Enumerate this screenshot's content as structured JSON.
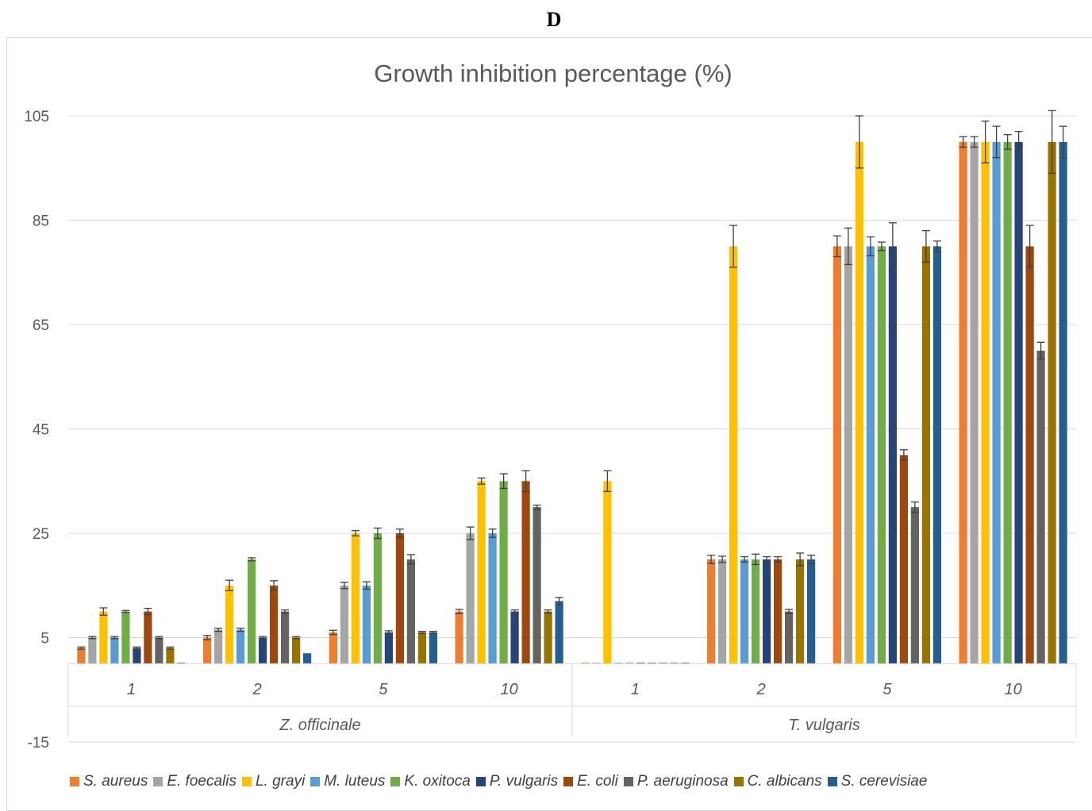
{
  "panel_label": "D",
  "chart_data": {
    "type": "bar",
    "title": "Growth inhibition percentage (%)",
    "xlabel": "",
    "ylabel": "",
    "ylim": [
      -15,
      105
    ],
    "yticks": [
      -15,
      5,
      25,
      45,
      65,
      85,
      105
    ],
    "grid": true,
    "legend_position": "bottom",
    "groups": [
      {
        "name": "Z. officinale",
        "categories": [
          "1",
          "2",
          "5",
          "10"
        ]
      },
      {
        "name": "T. vulgaris",
        "categories": [
          "1",
          "2",
          "5",
          "10"
        ]
      }
    ],
    "categories": [
      "1",
      "2",
      "5",
      "10",
      "1",
      "2",
      "5",
      "10"
    ],
    "series": [
      {
        "name": "S. aureus",
        "color": "#ed7d31",
        "values": [
          3,
          5,
          6,
          10,
          0,
          20,
          80,
          100
        ],
        "errors": [
          0.2,
          0.4,
          0.4,
          0.4,
          0,
          0.8,
          2,
          1
        ]
      },
      {
        "name": "E. foecalis",
        "color": "#a5a5a5",
        "values": [
          5,
          6.5,
          15,
          25,
          0,
          20,
          80,
          100
        ],
        "errors": [
          0.2,
          0.3,
          0.6,
          1.2,
          0,
          0.6,
          3.5,
          1
        ]
      },
      {
        "name": "L. grayi",
        "color": "#ffc000",
        "values": [
          10,
          15,
          25,
          35,
          35,
          80,
          100,
          100
        ],
        "errors": [
          0.7,
          1,
          0.5,
          0.6,
          2,
          4,
          5,
          4
        ]
      },
      {
        "name": "M. luteus",
        "color": "#5b9bd5",
        "values": [
          5,
          6.5,
          15,
          25,
          0,
          20,
          80,
          100
        ],
        "errors": [
          0.2,
          0.3,
          0.7,
          0.8,
          0,
          0.5,
          1.8,
          3
        ]
      },
      {
        "name": "K. oxitoca",
        "color": "#70ad47",
        "values": [
          10,
          20,
          25,
          35,
          0,
          20,
          80,
          100
        ],
        "errors": [
          0.2,
          0.3,
          1,
          1.4,
          0,
          1,
          0.8,
          1.4
        ]
      },
      {
        "name": "P. vulgaris",
        "color": "#264478",
        "values": [
          3,
          5,
          6,
          10,
          0,
          20,
          80,
          100
        ],
        "errors": [
          0.2,
          0.2,
          0.3,
          0.3,
          0,
          0.5,
          4.5,
          2
        ]
      },
      {
        "name": "E. coli",
        "color": "#9e480e",
        "values": [
          10,
          15,
          25,
          35,
          0,
          20,
          40,
          80
        ],
        "errors": [
          0.6,
          0.9,
          0.8,
          2,
          0,
          0.5,
          1,
          4
        ]
      },
      {
        "name": "P. aeruginosa",
        "color": "#636363",
        "values": [
          5,
          10,
          20,
          30,
          0,
          10,
          30,
          60
        ],
        "errors": [
          0.2,
          0.3,
          0.9,
          0.4,
          0,
          0.4,
          1,
          1.6
        ]
      },
      {
        "name": "C. albicans",
        "color": "#997300",
        "values": [
          3,
          5,
          6,
          10,
          0,
          20,
          80,
          100
        ],
        "errors": [
          0.2,
          0.2,
          0.2,
          0.3,
          0,
          1.2,
          3,
          6
        ]
      },
      {
        "name": "S. cerevisiae",
        "color": "#255e91",
        "values": [
          0,
          2,
          6,
          12,
          0,
          20,
          80,
          100
        ],
        "errors": [
          0,
          0,
          0.2,
          0.7,
          0,
          0.8,
          1,
          3
        ]
      }
    ]
  }
}
